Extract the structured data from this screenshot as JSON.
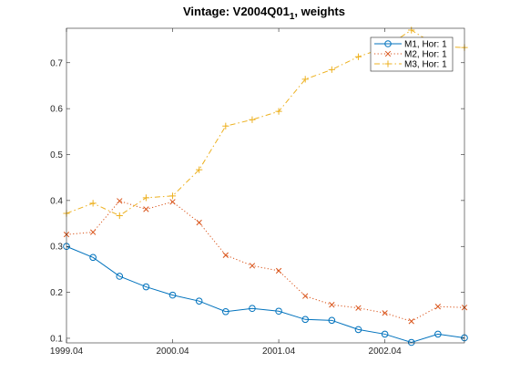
{
  "chart_data": {
    "type": "line",
    "title": "Vintage: V2004Q01",
    "title_subscript": "1",
    "title_suffix": ", weights",
    "xlabel": "",
    "ylabel": "",
    "x": [
      "1999.04",
      "1999.07",
      "1999.10",
      "2000.01",
      "2000.04",
      "2000.07",
      "2000.10",
      "2001.01",
      "2001.04",
      "2001.07",
      "2001.10",
      "2002.01",
      "2002.04",
      "2002.07",
      "2002.10",
      "2003.01"
    ],
    "x_ticks": [
      "1999.04",
      "2000.04",
      "2001.04",
      "2002.04"
    ],
    "y_ticks": [
      "0.1",
      "0.2",
      "0.3",
      "0.4",
      "0.5",
      "0.6",
      "0.7"
    ],
    "ylim": [
      0.09,
      0.775
    ],
    "grid": false,
    "legend_position": "top-right",
    "series": [
      {
        "name": "M1, Hor: 1",
        "color": "#0072BD",
        "marker": "circle",
        "dash": "solid",
        "values": [
          0.3,
          0.276,
          0.235,
          0.212,
          0.194,
          0.181,
          0.158,
          0.165,
          0.159,
          0.141,
          0.139,
          0.119,
          0.109,
          0.091,
          0.109,
          0.101
        ]
      },
      {
        "name": "M2, Hor: 1",
        "color": "#D95319",
        "marker": "x",
        "dash": "dotted",
        "values": [
          0.326,
          0.331,
          0.399,
          0.381,
          0.397,
          0.352,
          0.281,
          0.258,
          0.247,
          0.192,
          0.173,
          0.166,
          0.155,
          0.137,
          0.169,
          0.167
        ]
      },
      {
        "name": "M3, Hor: 1",
        "color": "#EDB120",
        "marker": "plus",
        "dash": "dashdot",
        "values": [
          0.372,
          0.394,
          0.367,
          0.406,
          0.41,
          0.467,
          0.562,
          0.576,
          0.594,
          0.664,
          0.685,
          0.713,
          0.733,
          0.771,
          0.735,
          0.733
        ]
      }
    ]
  }
}
